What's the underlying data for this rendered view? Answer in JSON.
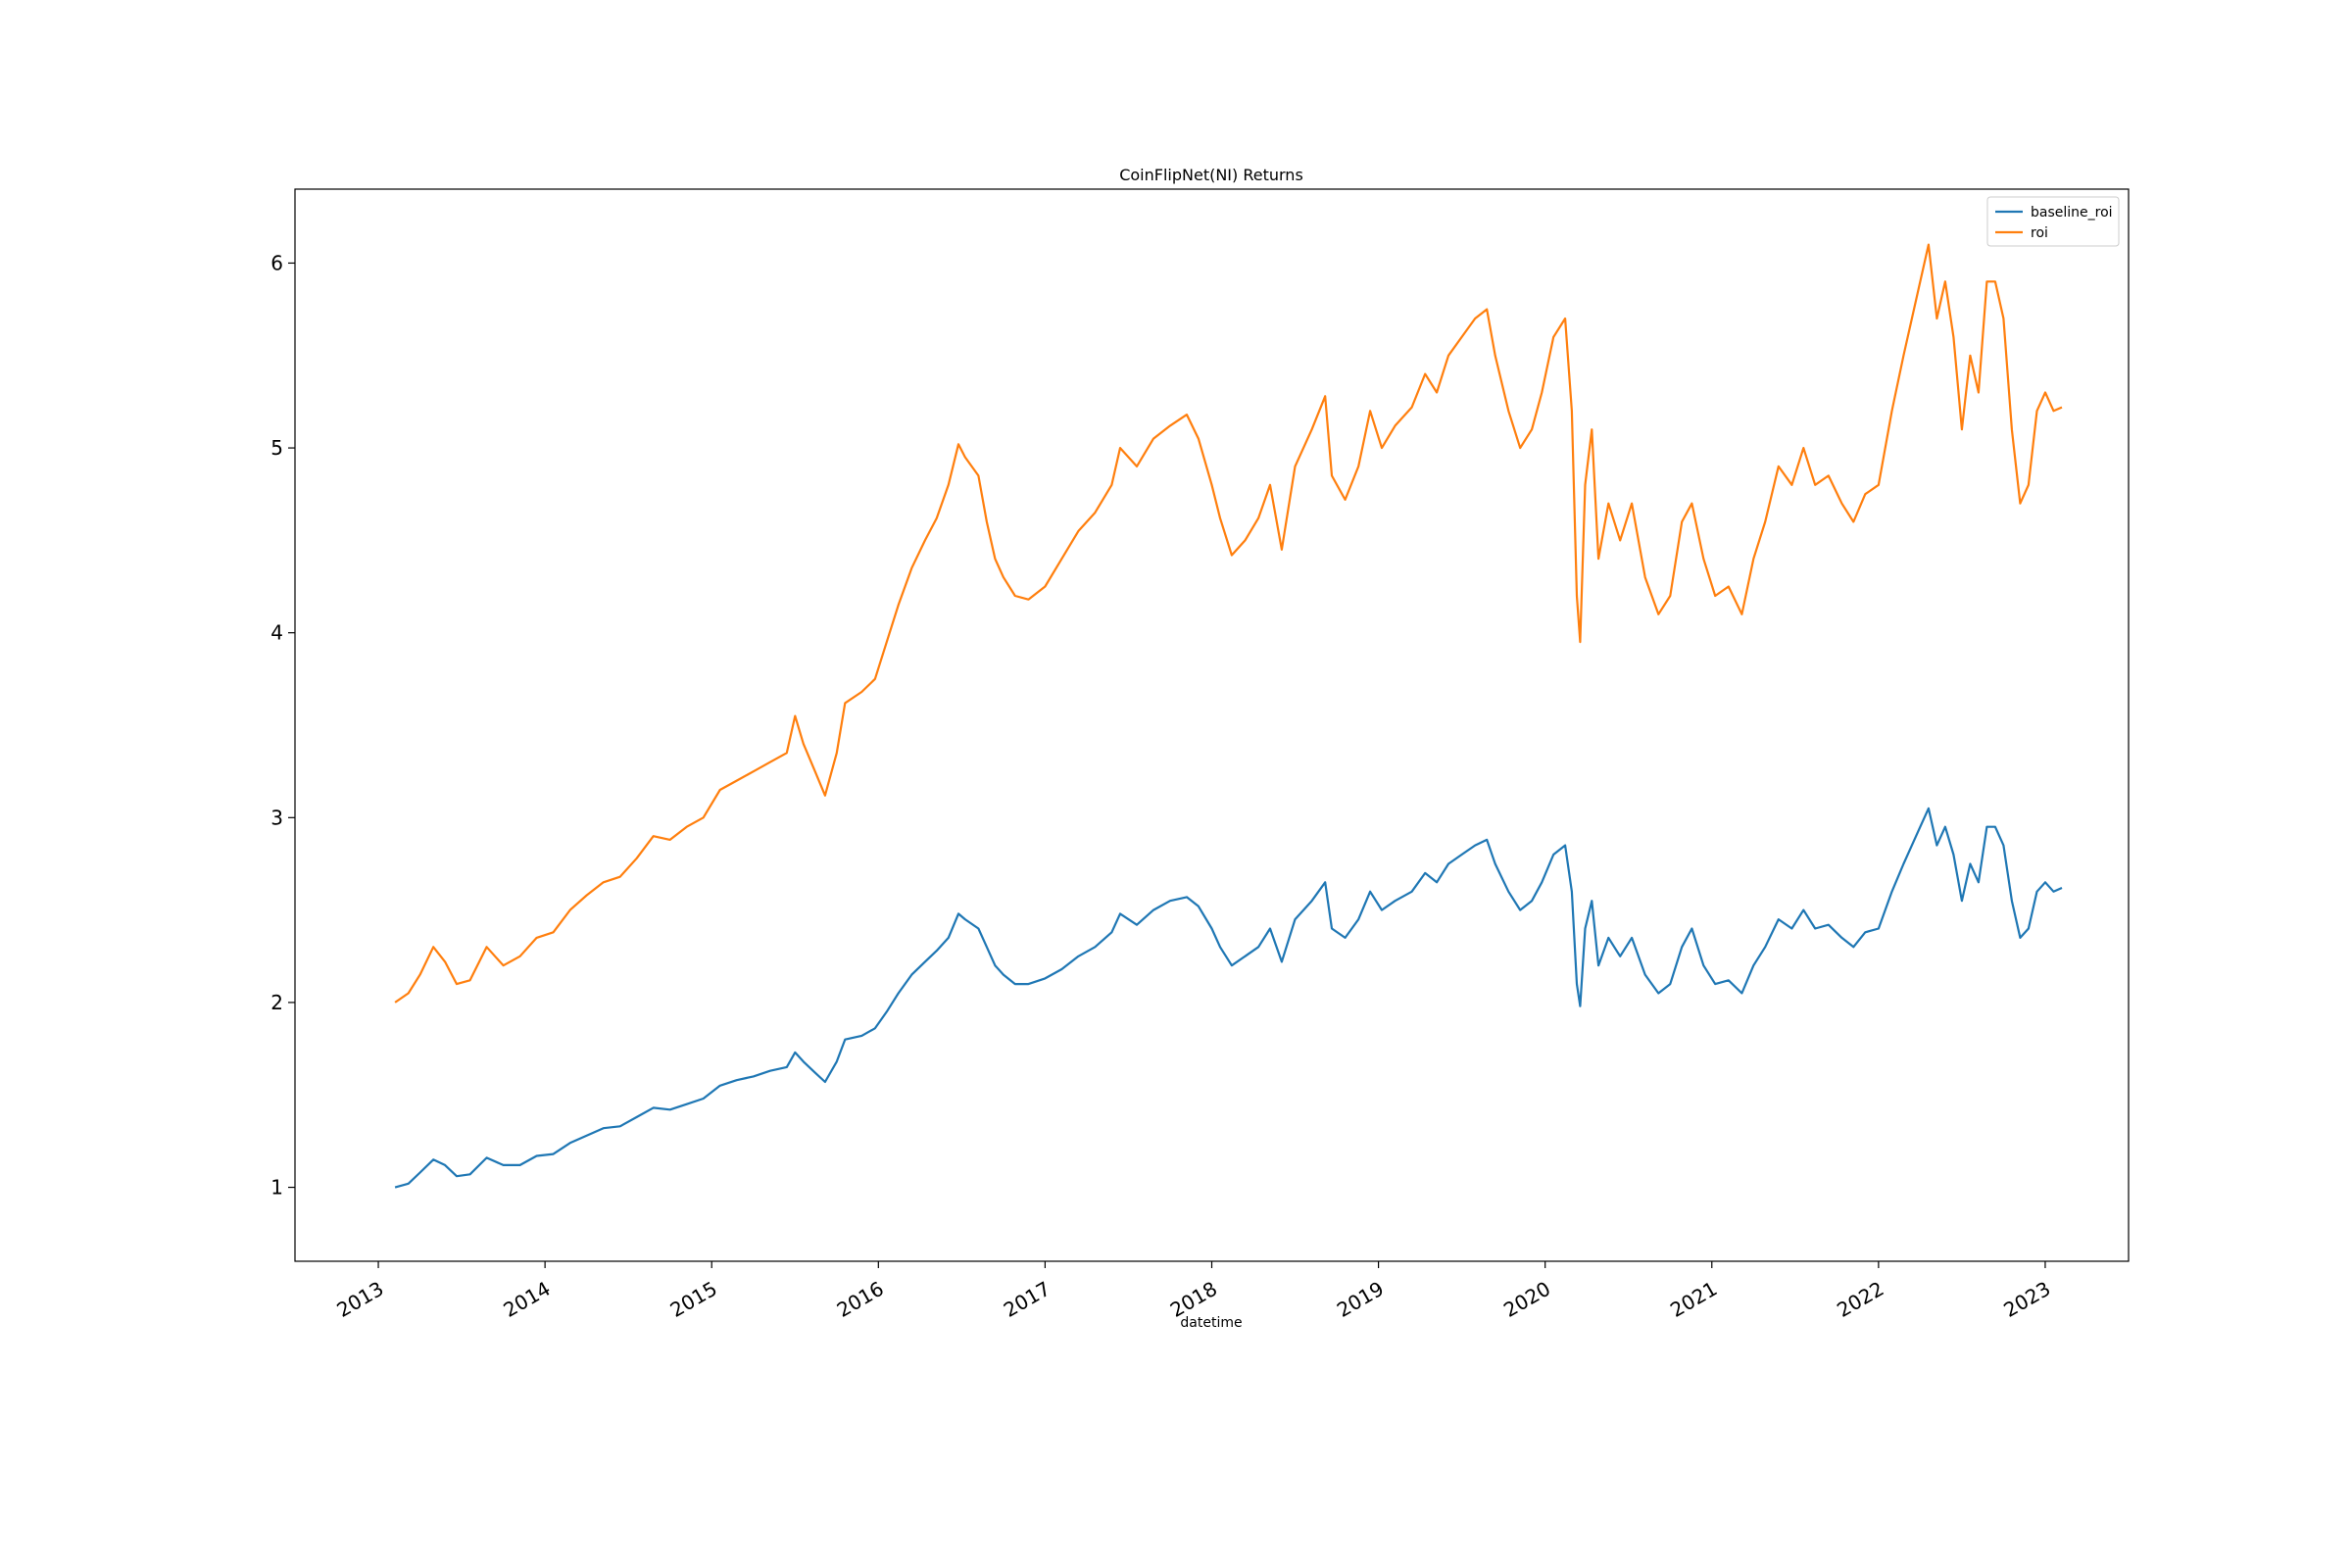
{
  "chart_data": {
    "type": "line",
    "title": "CoinFlipNet(NI) Returns",
    "xlabel": "datetime",
    "ylabel": "",
    "xlim": [
      2012.5,
      2023.5
    ],
    "ylim": [
      0.6,
      6.4
    ],
    "xticks": [
      2013,
      2014,
      2015,
      2016,
      2017,
      2018,
      2019,
      2020,
      2021,
      2022,
      2023
    ],
    "xtick_labels": [
      "2013",
      "2014",
      "2015",
      "2016",
      "2017",
      "2018",
      "2019",
      "2020",
      "2021",
      "2022",
      "2023"
    ],
    "yticks": [
      1,
      2,
      3,
      4,
      5,
      6
    ],
    "ytick_labels": [
      "1",
      "2",
      "3",
      "4",
      "5",
      "6"
    ],
    "grid": false,
    "legend_position": "top-right",
    "series": [
      {
        "name": "baseline_roi",
        "color": "#1f77b4",
        "points": [
          [
            2013.1,
            1.0
          ],
          [
            2013.18,
            1.02
          ],
          [
            2013.25,
            1.08
          ],
          [
            2013.33,
            1.15
          ],
          [
            2013.4,
            1.12
          ],
          [
            2013.47,
            1.06
          ],
          [
            2013.55,
            1.07
          ],
          [
            2013.65,
            1.16
          ],
          [
            2013.75,
            1.12
          ],
          [
            2013.85,
            1.12
          ],
          [
            2013.95,
            1.17
          ],
          [
            2014.05,
            1.18
          ],
          [
            2014.15,
            1.24
          ],
          [
            2014.25,
            1.28
          ],
          [
            2014.35,
            1.32
          ],
          [
            2014.45,
            1.33
          ],
          [
            2014.55,
            1.38
          ],
          [
            2014.65,
            1.43
          ],
          [
            2014.75,
            1.42
          ],
          [
            2014.85,
            1.45
          ],
          [
            2014.95,
            1.48
          ],
          [
            2015.05,
            1.55
          ],
          [
            2015.15,
            1.58
          ],
          [
            2015.25,
            1.6
          ],
          [
            2015.35,
            1.63
          ],
          [
            2015.45,
            1.65
          ],
          [
            2015.5,
            1.73
          ],
          [
            2015.55,
            1.68
          ],
          [
            2015.62,
            1.62
          ],
          [
            2015.68,
            1.57
          ],
          [
            2015.75,
            1.68
          ],
          [
            2015.8,
            1.8
          ],
          [
            2015.9,
            1.82
          ],
          [
            2015.98,
            1.86
          ],
          [
            2016.05,
            1.95
          ],
          [
            2016.12,
            2.05
          ],
          [
            2016.2,
            2.15
          ],
          [
            2016.28,
            2.22
          ],
          [
            2016.35,
            2.28
          ],
          [
            2016.42,
            2.35
          ],
          [
            2016.48,
            2.48
          ],
          [
            2016.52,
            2.45
          ],
          [
            2016.6,
            2.4
          ],
          [
            2016.65,
            2.3
          ],
          [
            2016.7,
            2.2
          ],
          [
            2016.75,
            2.15
          ],
          [
            2016.82,
            2.1
          ],
          [
            2016.9,
            2.1
          ],
          [
            2017.0,
            2.13
          ],
          [
            2017.1,
            2.18
          ],
          [
            2017.2,
            2.25
          ],
          [
            2017.3,
            2.3
          ],
          [
            2017.4,
            2.38
          ],
          [
            2017.45,
            2.48
          ],
          [
            2017.55,
            2.42
          ],
          [
            2017.65,
            2.5
          ],
          [
            2017.75,
            2.55
          ],
          [
            2017.85,
            2.57
          ],
          [
            2017.92,
            2.52
          ],
          [
            2018.0,
            2.4
          ],
          [
            2018.05,
            2.3
          ],
          [
            2018.12,
            2.2
          ],
          [
            2018.2,
            2.25
          ],
          [
            2018.28,
            2.3
          ],
          [
            2018.35,
            2.4
          ],
          [
            2018.42,
            2.22
          ],
          [
            2018.5,
            2.45
          ],
          [
            2018.6,
            2.55
          ],
          [
            2018.68,
            2.65
          ],
          [
            2018.72,
            2.4
          ],
          [
            2018.8,
            2.35
          ],
          [
            2018.88,
            2.45
          ],
          [
            2018.95,
            2.6
          ],
          [
            2019.02,
            2.5
          ],
          [
            2019.1,
            2.55
          ],
          [
            2019.2,
            2.6
          ],
          [
            2019.28,
            2.7
          ],
          [
            2019.35,
            2.65
          ],
          [
            2019.42,
            2.75
          ],
          [
            2019.5,
            2.8
          ],
          [
            2019.58,
            2.85
          ],
          [
            2019.65,
            2.88
          ],
          [
            2019.7,
            2.75
          ],
          [
            2019.78,
            2.6
          ],
          [
            2019.85,
            2.5
          ],
          [
            2019.92,
            2.55
          ],
          [
            2019.98,
            2.65
          ],
          [
            2020.05,
            2.8
          ],
          [
            2020.12,
            2.85
          ],
          [
            2020.16,
            2.6
          ],
          [
            2020.19,
            2.1
          ],
          [
            2020.21,
            1.98
          ],
          [
            2020.24,
            2.4
          ],
          [
            2020.28,
            2.55
          ],
          [
            2020.32,
            2.2
          ],
          [
            2020.38,
            2.35
          ],
          [
            2020.45,
            2.25
          ],
          [
            2020.52,
            2.35
          ],
          [
            2020.6,
            2.15
          ],
          [
            2020.68,
            2.05
          ],
          [
            2020.75,
            2.1
          ],
          [
            2020.82,
            2.3
          ],
          [
            2020.88,
            2.4
          ],
          [
            2020.95,
            2.2
          ],
          [
            2021.02,
            2.1
          ],
          [
            2021.1,
            2.12
          ],
          [
            2021.18,
            2.05
          ],
          [
            2021.25,
            2.2
          ],
          [
            2021.32,
            2.3
          ],
          [
            2021.4,
            2.45
          ],
          [
            2021.48,
            2.4
          ],
          [
            2021.55,
            2.5
          ],
          [
            2021.62,
            2.4
          ],
          [
            2021.7,
            2.42
          ],
          [
            2021.78,
            2.35
          ],
          [
            2021.85,
            2.3
          ],
          [
            2021.92,
            2.38
          ],
          [
            2022.0,
            2.4
          ],
          [
            2022.08,
            2.6
          ],
          [
            2022.15,
            2.75
          ],
          [
            2022.2,
            2.85
          ],
          [
            2022.25,
            2.95
          ],
          [
            2022.3,
            3.05
          ],
          [
            2022.35,
            2.85
          ],
          [
            2022.4,
            2.95
          ],
          [
            2022.45,
            2.8
          ],
          [
            2022.5,
            2.55
          ],
          [
            2022.55,
            2.75
          ],
          [
            2022.6,
            2.65
          ],
          [
            2022.65,
            2.95
          ],
          [
            2022.7,
            2.95
          ],
          [
            2022.75,
            2.85
          ],
          [
            2022.8,
            2.55
          ],
          [
            2022.85,
            2.35
          ],
          [
            2022.9,
            2.4
          ],
          [
            2022.95,
            2.6
          ],
          [
            2023.0,
            2.65
          ],
          [
            2023.05,
            2.6
          ],
          [
            2023.1,
            2.62
          ]
        ]
      },
      {
        "name": "roi",
        "color": "#ff7f0e",
        "points": [
          [
            2013.1,
            2.0
          ],
          [
            2013.18,
            2.05
          ],
          [
            2013.25,
            2.15
          ],
          [
            2013.33,
            2.3
          ],
          [
            2013.4,
            2.22
          ],
          [
            2013.47,
            2.1
          ],
          [
            2013.55,
            2.12
          ],
          [
            2013.65,
            2.3
          ],
          [
            2013.75,
            2.2
          ],
          [
            2013.85,
            2.25
          ],
          [
            2013.95,
            2.35
          ],
          [
            2014.05,
            2.38
          ],
          [
            2014.15,
            2.5
          ],
          [
            2014.25,
            2.58
          ],
          [
            2014.35,
            2.65
          ],
          [
            2014.45,
            2.68
          ],
          [
            2014.55,
            2.78
          ],
          [
            2014.65,
            2.9
          ],
          [
            2014.75,
            2.88
          ],
          [
            2014.85,
            2.95
          ],
          [
            2014.95,
            3.0
          ],
          [
            2015.05,
            3.15
          ],
          [
            2015.15,
            3.2
          ],
          [
            2015.25,
            3.25
          ],
          [
            2015.35,
            3.3
          ],
          [
            2015.45,
            3.35
          ],
          [
            2015.5,
            3.55
          ],
          [
            2015.55,
            3.4
          ],
          [
            2015.62,
            3.25
          ],
          [
            2015.68,
            3.12
          ],
          [
            2015.75,
            3.35
          ],
          [
            2015.8,
            3.62
          ],
          [
            2015.9,
            3.68
          ],
          [
            2015.98,
            3.75
          ],
          [
            2016.05,
            3.95
          ],
          [
            2016.12,
            4.15
          ],
          [
            2016.2,
            4.35
          ],
          [
            2016.28,
            4.5
          ],
          [
            2016.35,
            4.62
          ],
          [
            2016.42,
            4.8
          ],
          [
            2016.48,
            5.02
          ],
          [
            2016.52,
            4.95
          ],
          [
            2016.6,
            4.85
          ],
          [
            2016.65,
            4.6
          ],
          [
            2016.7,
            4.4
          ],
          [
            2016.75,
            4.3
          ],
          [
            2016.82,
            4.2
          ],
          [
            2016.9,
            4.18
          ],
          [
            2017.0,
            4.25
          ],
          [
            2017.1,
            4.4
          ],
          [
            2017.2,
            4.55
          ],
          [
            2017.3,
            4.65
          ],
          [
            2017.4,
            4.8
          ],
          [
            2017.45,
            5.0
          ],
          [
            2017.55,
            4.9
          ],
          [
            2017.65,
            5.05
          ],
          [
            2017.75,
            5.12
          ],
          [
            2017.85,
            5.18
          ],
          [
            2017.92,
            5.05
          ],
          [
            2018.0,
            4.8
          ],
          [
            2018.05,
            4.62
          ],
          [
            2018.12,
            4.42
          ],
          [
            2018.2,
            4.5
          ],
          [
            2018.28,
            4.62
          ],
          [
            2018.35,
            4.8
          ],
          [
            2018.42,
            4.45
          ],
          [
            2018.5,
            4.9
          ],
          [
            2018.6,
            5.1
          ],
          [
            2018.68,
            5.28
          ],
          [
            2018.72,
            4.85
          ],
          [
            2018.8,
            4.72
          ],
          [
            2018.88,
            4.9
          ],
          [
            2018.95,
            5.2
          ],
          [
            2019.02,
            5.0
          ],
          [
            2019.1,
            5.12
          ],
          [
            2019.2,
            5.22
          ],
          [
            2019.28,
            5.4
          ],
          [
            2019.35,
            5.3
          ],
          [
            2019.42,
            5.5
          ],
          [
            2019.5,
            5.6
          ],
          [
            2019.58,
            5.7
          ],
          [
            2019.65,
            5.75
          ],
          [
            2019.7,
            5.5
          ],
          [
            2019.78,
            5.2
          ],
          [
            2019.85,
            5.0
          ],
          [
            2019.92,
            5.1
          ],
          [
            2019.98,
            5.3
          ],
          [
            2020.05,
            5.6
          ],
          [
            2020.12,
            5.7
          ],
          [
            2020.16,
            5.2
          ],
          [
            2020.19,
            4.2
          ],
          [
            2020.21,
            3.95
          ],
          [
            2020.24,
            4.8
          ],
          [
            2020.28,
            5.1
          ],
          [
            2020.32,
            4.4
          ],
          [
            2020.38,
            4.7
          ],
          [
            2020.45,
            4.5
          ],
          [
            2020.52,
            4.7
          ],
          [
            2020.6,
            4.3
          ],
          [
            2020.68,
            4.1
          ],
          [
            2020.75,
            4.2
          ],
          [
            2020.82,
            4.6
          ],
          [
            2020.88,
            4.7
          ],
          [
            2020.95,
            4.4
          ],
          [
            2021.02,
            4.2
          ],
          [
            2021.1,
            4.25
          ],
          [
            2021.18,
            4.1
          ],
          [
            2021.25,
            4.4
          ],
          [
            2021.32,
            4.6
          ],
          [
            2021.4,
            4.9
          ],
          [
            2021.48,
            4.8
          ],
          [
            2021.55,
            5.0
          ],
          [
            2021.62,
            4.8
          ],
          [
            2021.7,
            4.85
          ],
          [
            2021.78,
            4.7
          ],
          [
            2021.85,
            4.6
          ],
          [
            2021.92,
            4.75
          ],
          [
            2022.0,
            4.8
          ],
          [
            2022.08,
            5.2
          ],
          [
            2022.15,
            5.5
          ],
          [
            2022.2,
            5.7
          ],
          [
            2022.25,
            5.9
          ],
          [
            2022.3,
            6.1
          ],
          [
            2022.35,
            5.7
          ],
          [
            2022.4,
            5.9
          ],
          [
            2022.45,
            5.6
          ],
          [
            2022.5,
            5.1
          ],
          [
            2022.55,
            5.5
          ],
          [
            2022.6,
            5.3
          ],
          [
            2022.65,
            5.9
          ],
          [
            2022.7,
            5.9
          ],
          [
            2022.75,
            5.7
          ],
          [
            2022.8,
            5.1
          ],
          [
            2022.85,
            4.7
          ],
          [
            2022.9,
            4.8
          ],
          [
            2022.95,
            5.2
          ],
          [
            2023.0,
            5.3
          ],
          [
            2023.05,
            5.2
          ],
          [
            2023.1,
            5.22
          ]
        ]
      }
    ]
  }
}
